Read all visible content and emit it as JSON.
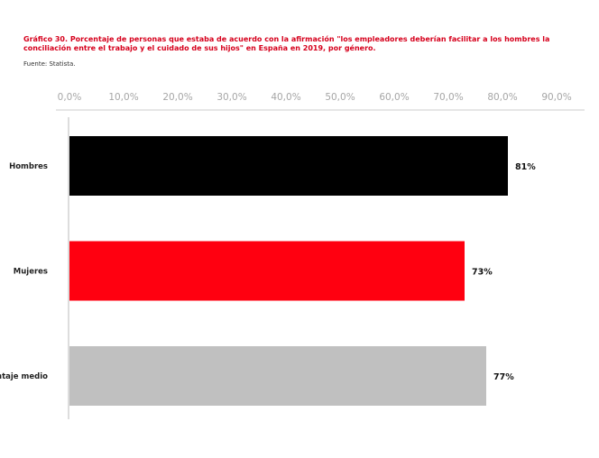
{
  "chart_data": {
    "type": "bar",
    "orientation": "horizontal",
    "title": "Gráfico 30. Porcentaje de personas que estaba de acuerdo con la afirmación \"los empleadores deberían facilitar a los hombres la conciliación entre el trabajo y el cuidado de sus hijos\" en España en 2019, por género.",
    "source": "Fuente: Statista.",
    "categories": [
      "Hombres",
      "Mujeres",
      "ntaje medio"
    ],
    "values": [
      81,
      73,
      77
    ],
    "data_labels": [
      "81%",
      "73%",
      "77%"
    ],
    "bar_colors": [
      "#000000",
      "#ff0010",
      "#c0c0c0"
    ],
    "x_ticks": [
      "0,0%",
      "10,0%",
      "20,0%",
      "30,0%",
      "40,0%",
      "50,0%",
      "60,0%",
      "70,0%",
      "80,0%",
      "90,0%"
    ],
    "xlim": [
      0,
      92
    ],
    "x_axis_position": "top",
    "grid": false,
    "legend": "none"
  }
}
